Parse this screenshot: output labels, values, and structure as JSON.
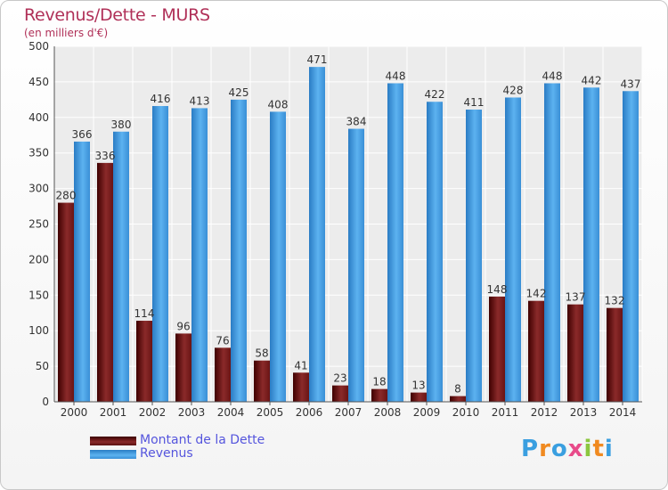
{
  "title": "Revenus/Dette - MURS",
  "subtitle": "(en milliers d'€)",
  "logo_letters": [
    "P",
    "r",
    "o",
    "x",
    "i",
    "t",
    "i"
  ],
  "logo_colors": [
    "#3a9fe0",
    "#f08a20",
    "#3a9fe0",
    "#e84b8a",
    "#8cc63f",
    "#f08a20",
    "#3a9fe0"
  ],
  "chart_data": {
    "type": "bar",
    "categories": [
      "2000",
      "2001",
      "2002",
      "2003",
      "2004",
      "2005",
      "2006",
      "2007",
      "2008",
      "2009",
      "2010",
      "2011",
      "2012",
      "2013",
      "2014"
    ],
    "series": [
      {
        "name": "Montant de la Dette",
        "color": "#7a1a1a",
        "values": [
          280,
          336,
          114,
          96,
          76,
          58,
          41,
          23,
          18,
          13,
          8,
          148,
          142,
          137,
          132
        ]
      },
      {
        "name": "Revenus",
        "color": "#4aa3e8",
        "values": [
          366,
          380,
          416,
          413,
          425,
          408,
          471,
          384,
          448,
          422,
          411,
          428,
          448,
          442,
          437
        ]
      }
    ],
    "y_ticks": [
      0,
      50,
      100,
      150,
      200,
      250,
      300,
      350,
      400,
      450,
      500
    ],
    "ylim": [
      0,
      500
    ],
    "grid": true,
    "legend_position": "bottom-left"
  }
}
